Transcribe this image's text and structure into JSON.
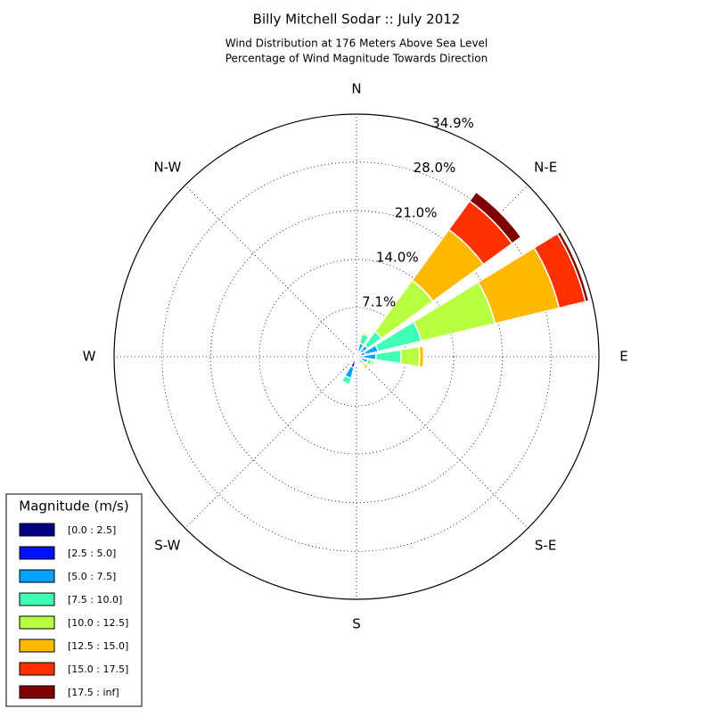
{
  "chart_data": {
    "type": "windrose",
    "title": "Billy Mitchell Sodar :: July 2012",
    "subtitle": [
      "Wind Distribution at 176 Meters Above Sea Level",
      "Percentage of Wind Magnitude Towards Direction"
    ],
    "categories": [
      "N",
      null,
      "N-E",
      null,
      "E",
      null,
      "S-E",
      null,
      "S",
      null,
      "S-W",
      null,
      "W",
      null,
      "N-W",
      null
    ],
    "rlim": [
      0,
      34.9
    ],
    "rticks": [
      {
        "value": 7.1,
        "label": "7.1%"
      },
      {
        "value": 14.0,
        "label": "14.0%"
      },
      {
        "value": 21.0,
        "label": "21.0%"
      },
      {
        "value": 28.0,
        "label": "28.0%"
      },
      {
        "value": 34.9,
        "label": "34.9%"
      }
    ],
    "grid": true,
    "legend_title": "Magnitude (m/s)",
    "legend_position": "lower-left",
    "series": [
      {
        "name": "[0.0 : 2.5]",
        "color": "#000080",
        "values": [
          0.2,
          0.2,
          0.2,
          0.3,
          0.3,
          0.2,
          0.2,
          0.2,
          0.2,
          0.2,
          0.2,
          0.1,
          0.1,
          0.1,
          0.1,
          0.2
        ]
      },
      {
        "name": "[2.5 : 5.0]",
        "color": "#0010ff",
        "values": [
          0.4,
          0.6,
          0.6,
          1.0,
          0.7,
          0.5,
          0.4,
          0.5,
          0.6,
          1.4,
          0.6,
          0.3,
          0.2,
          0.2,
          0.2,
          0.3
        ]
      },
      {
        "name": "[5.0 : 7.5]",
        "color": "#00a4ff",
        "values": [
          0.2,
          1.2,
          1.2,
          1.9,
          1.8,
          1.0,
          0.6,
          0.2,
          0.3,
          1.6,
          0.3,
          0.1,
          0,
          0,
          0,
          0.1
        ]
      },
      {
        "name": "[7.5 : 10.0]",
        "color": "#40ffb7",
        "values": [
          0,
          1.4,
          2.5,
          6.4,
          3.6,
          0.6,
          0.3,
          0.1,
          0,
          0.9,
          0,
          0,
          0,
          0,
          0,
          0
        ]
      },
      {
        "name": "[10.0 : 12.5]",
        "color": "#b7ff40",
        "values": [
          0,
          0.3,
          9.1,
          10.9,
          2.7,
          0.4,
          0.3,
          0,
          0,
          0,
          0,
          0,
          0,
          0,
          0,
          0
        ]
      },
      {
        "name": "[12.5 : 15.0]",
        "color": "#ffb900",
        "values": [
          0,
          0,
          9.0,
          9.5,
          0.6,
          0,
          0.4,
          0,
          0,
          0,
          0,
          0,
          0,
          0,
          0,
          0
        ]
      },
      {
        "name": "[15.0 : 17.5]",
        "color": "#ff3000",
        "values": [
          0,
          0,
          5.1,
          3.9,
          0,
          0,
          0,
          0,
          0,
          0,
          0,
          0,
          0,
          0,
          0,
          0
        ]
      },
      {
        "name": "[17.5 : inf]",
        "color": "#800000",
        "values": [
          0,
          0,
          1.6,
          0.5,
          0,
          0,
          0,
          0,
          0,
          0,
          0,
          0,
          0,
          0,
          0,
          0
        ]
      }
    ]
  }
}
